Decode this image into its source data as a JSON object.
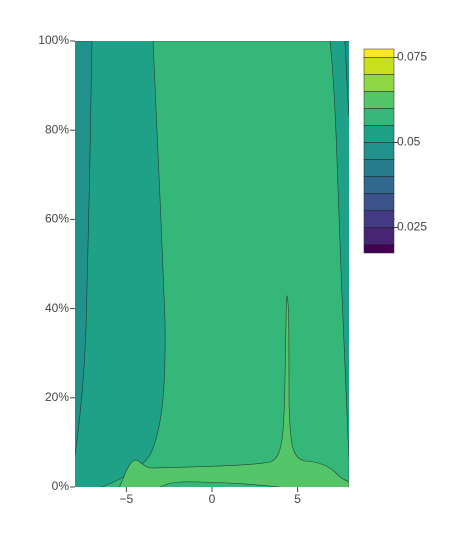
{
  "chart_data": {
    "type": "contour",
    "xlim": [
      -8,
      8
    ],
    "xticks": [
      {
        "value": -5,
        "label": "−5"
      },
      0,
      5
    ],
    "ylim": [
      0,
      1
    ],
    "yticks": [
      {
        "value": 0,
        "label": "0%"
      },
      {
        "value": 0.2,
        "label": "20%"
      },
      {
        "value": 0.4,
        "label": "40%"
      },
      {
        "value": 0.6,
        "label": "60%"
      },
      {
        "value": 0.8,
        "label": "80%"
      },
      {
        "value": 1,
        "label": "100%"
      }
    ],
    "zlim": [
      0.0175,
      0.0775
    ],
    "levels": {
      "start": 0.02,
      "end": 0.075,
      "size": 0.005
    },
    "colors": [
      "#440154",
      "#482475",
      "#443983",
      "#3b528b",
      "#31688e",
      "#287c8e",
      "#21918c",
      "#1fa188",
      "#35b779",
      "#54c568",
      "#8fd744",
      "#c8e020",
      "#fde725"
    ],
    "cticks": [
      0.025,
      0.05,
      0.075
    ]
  }
}
